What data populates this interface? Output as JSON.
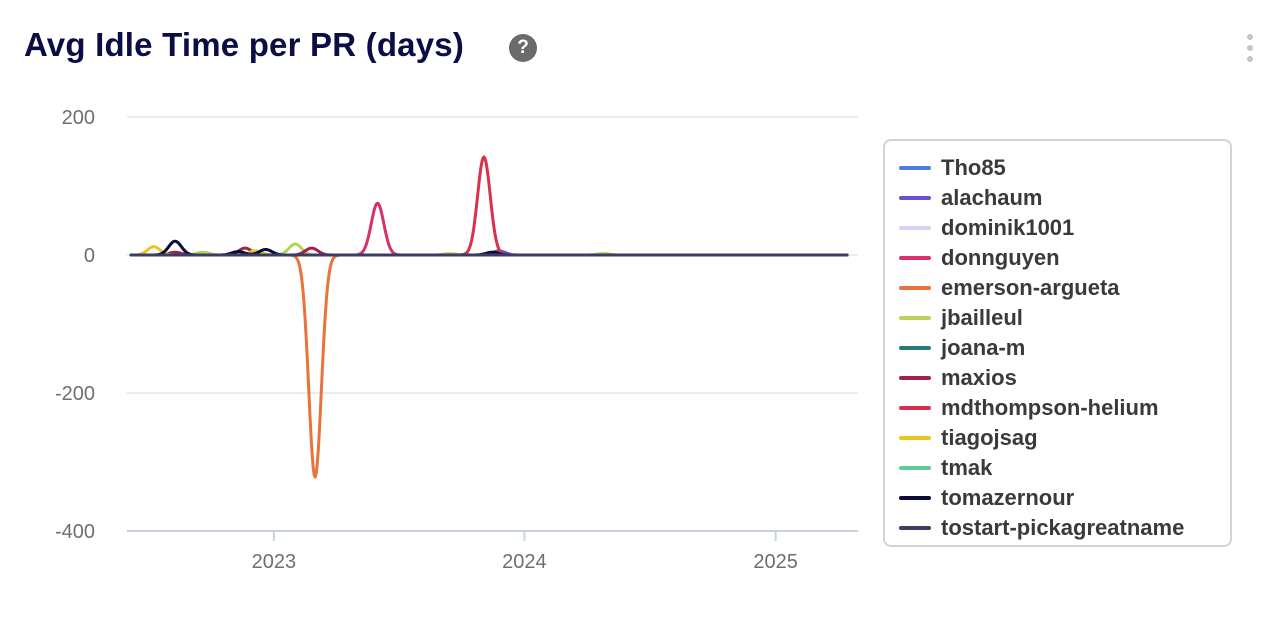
{
  "header": {
    "title": "Avg Idle Time per PR (days)",
    "help_icon": "question-circle-icon",
    "help_glyph": "?",
    "menu_icon": "vertical-ellipsis-icon"
  },
  "chart_data": {
    "type": "line",
    "title": "Avg Idle Time per PR (days)",
    "xlabel": "",
    "ylabel": "",
    "x_ticks": [
      "2023",
      "2024",
      "2025"
    ],
    "y_ticks": [
      200,
      0,
      -200,
      -400
    ],
    "ylim": [
      -400,
      200
    ],
    "xlim": [
      "2022-06-01",
      "2025-05-01"
    ],
    "grid": "horizontal",
    "legend_position": "right",
    "series": [
      {
        "name": "Tho85",
        "color": "#4a7fe0",
        "points": []
      },
      {
        "name": "alachaum",
        "color": "#6b4fd0",
        "points": [
          {
            "x": "2023-11-25",
            "y": 6
          }
        ]
      },
      {
        "name": "dominik1001",
        "color": "#d9d2f8",
        "points": []
      },
      {
        "name": "donnguyen",
        "color": "#d8306a",
        "points": [
          {
            "x": "2023-06-01",
            "y": 75
          }
        ]
      },
      {
        "name": "emerson-argueta",
        "color": "#e8743b",
        "points": [
          {
            "x": "2023-03-02",
            "y": -322
          }
        ]
      },
      {
        "name": "jbailleul",
        "color": "#b9d25a",
        "points": [
          {
            "x": "2023-02-01",
            "y": 16
          },
          {
            "x": "2022-09-20",
            "y": 4
          },
          {
            "x": "2023-09-15",
            "y": 2
          },
          {
            "x": "2024-04-25",
            "y": 2
          }
        ]
      },
      {
        "name": "joana-m",
        "color": "#2b7a7a",
        "points": []
      },
      {
        "name": "maxios",
        "color": "#a3214b",
        "points": [
          {
            "x": "2022-11-20",
            "y": 10
          },
          {
            "x": "2023-02-25",
            "y": 10
          },
          {
            "x": "2022-08-10",
            "y": 4
          }
        ]
      },
      {
        "name": "mdthompson-helium",
        "color": "#d9314b",
        "points": [
          {
            "x": "2023-11-03",
            "y": 142
          }
        ]
      },
      {
        "name": "tiagojsag",
        "color": "#e8c51f",
        "points": [
          {
            "x": "2022-07-10",
            "y": 12
          },
          {
            "x": "2022-12-05",
            "y": 6
          }
        ]
      },
      {
        "name": "tmak",
        "color": "#5dcc9a",
        "points": []
      },
      {
        "name": "tomazernour",
        "color": "#0a0a38",
        "points": [
          {
            "x": "2022-08-10",
            "y": 20
          },
          {
            "x": "2022-11-10",
            "y": 5
          },
          {
            "x": "2022-12-20",
            "y": 8
          },
          {
            "x": "2023-11-15",
            "y": 4
          }
        ]
      },
      {
        "name": "tostart-pickagreatname",
        "color": "#3c3d66",
        "points": []
      }
    ]
  }
}
